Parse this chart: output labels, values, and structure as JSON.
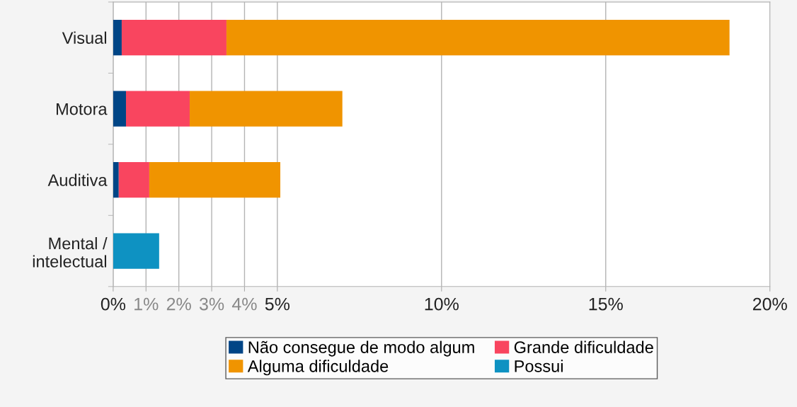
{
  "chart_data": {
    "type": "bar",
    "orientation": "horizontal",
    "stacked": true,
    "categories": [
      "Visual",
      "Motora",
      "Auditiva",
      "Mental /\nintelectual"
    ],
    "series": [
      {
        "name": "Não consegue de modo algum",
        "color": "#004586",
        "values": [
          0.26,
          0.39,
          0.17,
          null
        ]
      },
      {
        "name": "Grande dificuldade",
        "color": "#f9455f",
        "values": [
          3.19,
          1.94,
          0.93,
          null
        ]
      },
      {
        "name": "Alguma dificuldade",
        "color": "#f09400",
        "values": [
          15.32,
          4.65,
          3.99,
          null
        ]
      },
      {
        "name": "Possui",
        "color": "#0e92c2",
        "values": [
          null,
          null,
          null,
          1.4
        ]
      }
    ],
    "xlim": [
      0,
      20
    ],
    "xticks": [
      {
        "value": 0,
        "label": "0%"
      },
      {
        "value": 1,
        "label": "1%"
      },
      {
        "value": 2,
        "label": "2%"
      },
      {
        "value": 3,
        "label": "3%"
      },
      {
        "value": 4,
        "label": "4%"
      },
      {
        "value": 5,
        "label": "5%"
      },
      {
        "value": 10,
        "label": "10%"
      },
      {
        "value": 15,
        "label": "15%"
      },
      {
        "value": 20,
        "label": "20%"
      }
    ],
    "grid": "x",
    "legend": "bottom"
  }
}
